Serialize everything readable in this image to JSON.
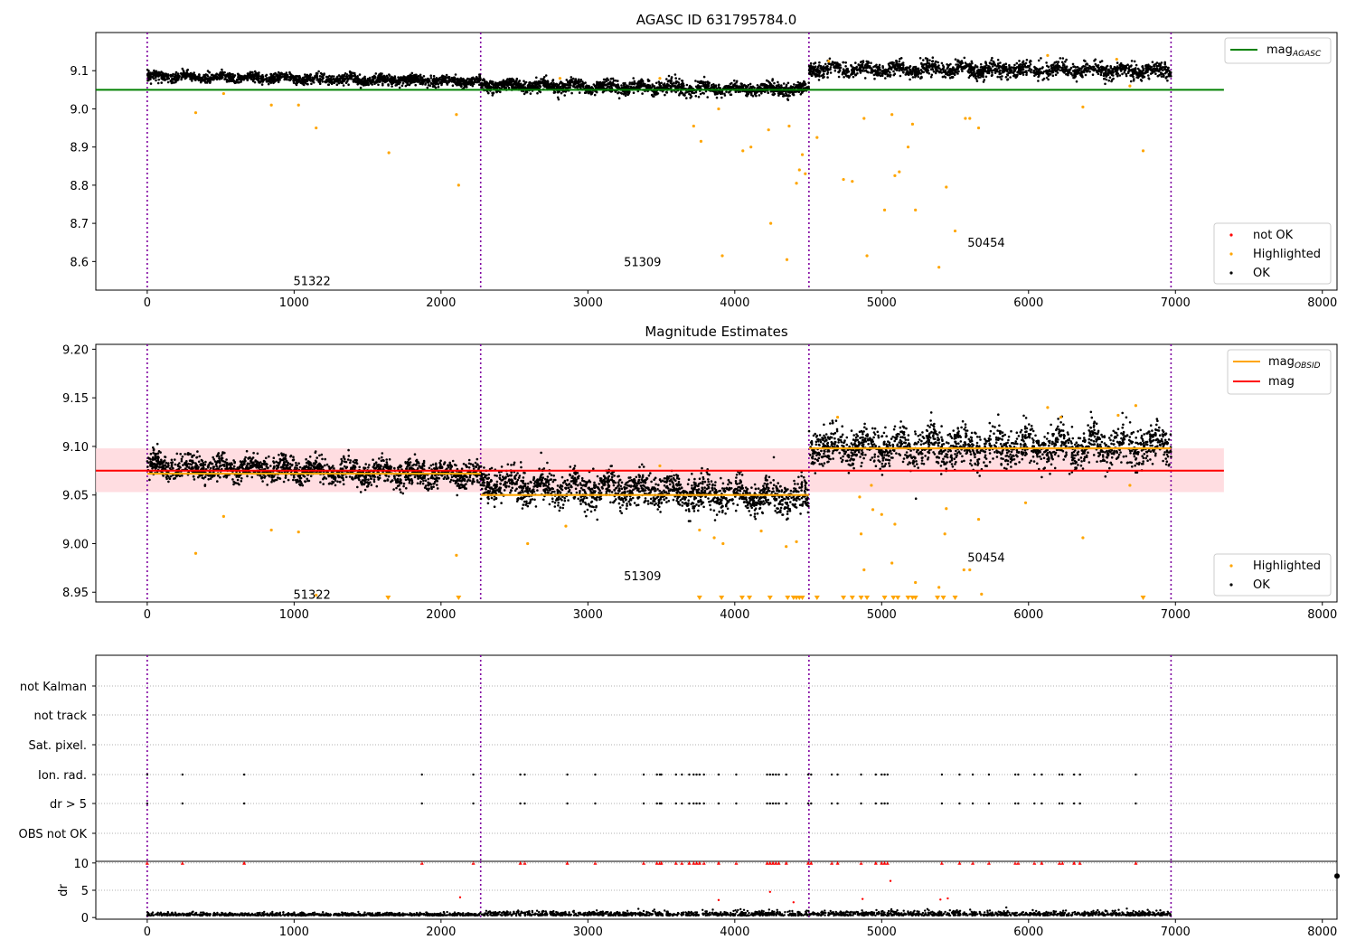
{
  "chart_data": [
    {
      "type": "scatter",
      "title": "AGASC ID 631795784.0",
      "xlim": [
        -350,
        8100
      ],
      "ylim": [
        8.525,
        9.2
      ],
      "xticks": [
        0,
        1000,
        2000,
        3000,
        4000,
        5000,
        6000,
        7000,
        8000
      ],
      "xtick_labels": [
        "0",
        "1000",
        "2000",
        "3000",
        "4000",
        "5000",
        "6000",
        "7000",
        "8000"
      ],
      "yticks": [
        8.6,
        8.7,
        8.8,
        8.9,
        9.0,
        9.1
      ],
      "ytick_labels": [
        "8.6",
        "8.7",
        "8.8",
        "8.9",
        "9.0",
        "9.1"
      ],
      "grid": false,
      "obsid_boundaries": [
        0,
        2270,
        4505,
        6970
      ],
      "obsid_labels": [
        {
          "text": "51322",
          "x": 1130,
          "y": 8.55
        },
        {
          "text": "51309",
          "x": 3380,
          "y": 8.6
        },
        {
          "text": "50454",
          "x": 5720,
          "y": 8.65
        }
      ],
      "lines": [
        {
          "name": "mag",
          "subscript": "AGASC",
          "color": "#008000",
          "x": [
            -350,
            7330
          ],
          "y": [
            9.05,
            9.05
          ]
        }
      ],
      "ok_segments": [
        {
          "x_start": 0,
          "x_end": 2270,
          "start": 9.085,
          "end": 9.072,
          "spread": 0.009
        },
        {
          "x_start": 2270,
          "x_end": 4505,
          "start": 9.062,
          "end": 9.05,
          "spread": 0.012
        },
        {
          "x_start": 4505,
          "x_end": 6970,
          "start": 9.105,
          "end": 9.1,
          "spread": 0.014
        }
      ],
      "highlighted_points": [
        [
          330,
          8.99
        ],
        [
          845,
          9.01
        ],
        [
          1030,
          9.01
        ],
        [
          1150,
          8.95
        ],
        [
          1645,
          8.885
        ],
        [
          2105,
          8.985
        ],
        [
          2120,
          8.8
        ],
        [
          3490,
          9.08
        ],
        [
          3720,
          8.955
        ],
        [
          3770,
          8.915
        ],
        [
          3890,
          9.0
        ],
        [
          3915,
          8.615
        ],
        [
          4055,
          8.89
        ],
        [
          4110,
          8.9
        ],
        [
          4230,
          8.945
        ],
        [
          4245,
          8.7
        ],
        [
          4355,
          8.605
        ],
        [
          4370,
          8.955
        ],
        [
          4420,
          8.805
        ],
        [
          4440,
          8.84
        ],
        [
          4460,
          8.88
        ],
        [
          4480,
          8.83
        ],
        [
          4560,
          8.925
        ],
        [
          4740,
          8.815
        ],
        [
          4800,
          8.81
        ],
        [
          4880,
          8.975
        ],
        [
          4900,
          8.615
        ],
        [
          5020,
          8.735
        ],
        [
          5070,
          8.985
        ],
        [
          5090,
          8.825
        ],
        [
          5120,
          8.835
        ],
        [
          5180,
          8.9
        ],
        [
          5210,
          8.96
        ],
        [
          5230,
          8.735
        ],
        [
          5390,
          8.585
        ],
        [
          5440,
          8.795
        ],
        [
          5500,
          8.68
        ],
        [
          5570,
          8.975
        ],
        [
          5600,
          8.975
        ],
        [
          5660,
          8.95
        ],
        [
          6370,
          9.005
        ],
        [
          6780,
          8.89
        ],
        [
          6690,
          9.06
        ],
        [
          6600,
          9.13
        ],
        [
          6130,
          9.14
        ],
        [
          4640,
          9.125
        ],
        [
          2810,
          9.08
        ],
        [
          520,
          9.04
        ]
      ],
      "legend": {
        "upper": [
          "mag_AGASC"
        ],
        "lower": [
          "not OK",
          "Highlighted",
          "OK"
        ]
      },
      "colors": {
        "ok": "#000000",
        "highlighted": "#ffa500",
        "not_ok": "#ff0000",
        "agasc": "#008000",
        "obsid_line": "#8000a0"
      }
    },
    {
      "type": "scatter",
      "title": "Magnitude Estimates",
      "xlim": [
        -350,
        8100
      ],
      "ylim": [
        8.94,
        9.205
      ],
      "xticks": [
        0,
        1000,
        2000,
        3000,
        4000,
        5000,
        6000,
        7000,
        8000
      ],
      "xtick_labels": [
        "0",
        "1000",
        "2000",
        "3000",
        "4000",
        "5000",
        "6000",
        "7000",
        "8000"
      ],
      "yticks": [
        8.95,
        9.0,
        9.05,
        9.1,
        9.15,
        9.2
      ],
      "ytick_labels": [
        "8.95",
        "9.00",
        "9.05",
        "9.10",
        "9.15",
        "9.20"
      ],
      "grid": false,
      "obsid_boundaries": [
        0,
        2270,
        4505,
        6970
      ],
      "obsid_labels": [
        {
          "text": "51322",
          "x": 1130,
          "y": 8.948
        },
        {
          "text": "51309",
          "x": 3380,
          "y": 8.967
        },
        {
          "text": "50454",
          "x": 5720,
          "y": 8.986
        }
      ],
      "mag": {
        "value": 9.075,
        "band": [
          9.053,
          9.098
        ],
        "x": [
          -350,
          7330
        ],
        "color": "#ff0000"
      },
      "mag_obsid": [
        {
          "x": [
            0,
            2270
          ],
          "value": 9.072
        },
        {
          "x": [
            2270,
            4505
          ],
          "value": 9.05
        },
        {
          "x": [
            4505,
            6970
          ],
          "value": 9.098
        }
      ],
      "ok_segments": [
        {
          "x_start": 0,
          "x_end": 2270,
          "start": 9.08,
          "end": 9.07,
          "spread": 0.009
        },
        {
          "x_start": 2270,
          "x_end": 4505,
          "start": 9.06,
          "end": 9.048,
          "spread": 0.012
        },
        {
          "x_start": 4505,
          "x_end": 6970,
          "start": 9.1,
          "end": 9.1,
          "spread": 0.014
        }
      ],
      "highlighted_points": [
        [
          330,
          8.99
        ],
        [
          520,
          9.028
        ],
        [
          845,
          9.014
        ],
        [
          1030,
          9.012
        ],
        [
          1150,
          8.947
        ],
        [
          2105,
          8.988
        ],
        [
          2590,
          9.0
        ],
        [
          2850,
          9.018
        ],
        [
          3490,
          9.08
        ],
        [
          3760,
          9.014
        ],
        [
          3860,
          9.006
        ],
        [
          3920,
          9.0
        ],
        [
          4180,
          9.013
        ],
        [
          4350,
          8.997
        ],
        [
          4420,
          9.002
        ],
        [
          4700,
          9.13
        ],
        [
          4850,
          9.048
        ],
        [
          4860,
          9.01
        ],
        [
          4880,
          8.973
        ],
        [
          4940,
          9.035
        ],
        [
          5000,
          9.03
        ],
        [
          5070,
          8.98
        ],
        [
          5090,
          9.02
        ],
        [
          5230,
          8.96
        ],
        [
          5390,
          8.955
        ],
        [
          5430,
          9.01
        ],
        [
          5440,
          9.036
        ],
        [
          5560,
          8.973
        ],
        [
          5600,
          8.973
        ],
        [
          5660,
          9.025
        ],
        [
          5680,
          8.948
        ],
        [
          5980,
          9.042
        ],
        [
          6370,
          9.006
        ],
        [
          6690,
          9.06
        ],
        [
          6130,
          9.14
        ],
        [
          6220,
          9.13
        ],
        [
          6610,
          9.132
        ],
        [
          6730,
          9.142
        ],
        [
          4930,
          9.06
        ]
      ],
      "below_range_x": [
        1640,
        2120,
        3760,
        3910,
        4050,
        4100,
        4240,
        4360,
        4400,
        4420,
        4440,
        4460,
        4560,
        4740,
        4800,
        4860,
        4900,
        5020,
        5080,
        5110,
        5180,
        5210,
        5230,
        5380,
        5420,
        5500,
        6780
      ],
      "legend": {
        "upper": [
          "mag_OBSID",
          "mag"
        ],
        "lower": [
          "Highlighted",
          "OK"
        ]
      },
      "colors": {
        "ok": "#000000",
        "highlighted": "#ffa500",
        "mag_obsid": "#ffa500",
        "mag": "#ff0000",
        "band": "#ffd7dc",
        "obsid_line": "#8000a0"
      }
    },
    {
      "type": "scatter",
      "title": "",
      "xlim": [
        -350,
        8100
      ],
      "categories": [
        "not Kalman",
        "not track",
        "Sat. pixel.",
        "Ion. rad.",
        "dr > 5",
        "OBS not OK"
      ],
      "flag_events_x": [
        0,
        240,
        660,
        1870,
        2220,
        2540,
        2570,
        2860,
        3050,
        3380,
        3470,
        3490,
        3500,
        3600,
        3640,
        3690,
        3720,
        3740,
        3760,
        3790,
        3890,
        4010,
        4220,
        4240,
        4260,
        4280,
        4300,
        4350,
        4500,
        4520,
        4660,
        4700,
        4860,
        4960,
        5000,
        5020,
        5040,
        5410,
        5530,
        5620,
        5730,
        5910,
        5930,
        6040,
        6090,
        6210,
        6230,
        6310,
        6350,
        6730
      ],
      "flag_rows": [
        "Ion. rad.",
        "dr > 5"
      ],
      "obsid_boundaries": [
        0,
        2270,
        4505,
        6970
      ],
      "colors": {
        "flag": "#000000",
        "obsid_line": "#8000a0"
      }
    },
    {
      "type": "scatter",
      "title": "",
      "ylabel": "dr",
      "xlim": [
        -350,
        8100
      ],
      "ylim": [
        -0.3,
        10.3
      ],
      "yticks": [
        0,
        5,
        10
      ],
      "ytick_labels": [
        "0",
        "5",
        "10"
      ],
      "xticks": [
        0,
        1000,
        2000,
        3000,
        4000,
        5000,
        6000,
        7000,
        8000
      ],
      "xtick_labels": [
        "0",
        "1000",
        "2000",
        "3000",
        "4000",
        "5000",
        "6000",
        "7000",
        "8000"
      ],
      "baseline_dr": {
        "mean": 0.55,
        "spread": 0.3,
        "x_start": 0,
        "x_end": 6970
      },
      "clipped_value": 10,
      "clipped_x": [
        0,
        240,
        660,
        1870,
        2220,
        2540,
        2570,
        2860,
        3050,
        3380,
        3470,
        3490,
        3500,
        3600,
        3640,
        3690,
        3720,
        3740,
        3760,
        3790,
        3890,
        4010,
        4220,
        4240,
        4260,
        4280,
        4300,
        4350,
        4500,
        4520,
        4660,
        4700,
        4860,
        4960,
        5000,
        5020,
        5040,
        5410,
        5530,
        5620,
        5730,
        5910,
        5930,
        6040,
        6090,
        6210,
        6230,
        6310,
        6350,
        6730
      ],
      "red_points": [
        [
          2130,
          3.7
        ],
        [
          3890,
          3.2
        ],
        [
          4240,
          4.7
        ],
        [
          4870,
          3.4
        ],
        [
          5060,
          6.7
        ],
        [
          5400,
          3.3
        ],
        [
          5450,
          3.5
        ],
        [
          4400,
          2.8
        ]
      ],
      "obsid_boundaries": [
        0,
        2270,
        4505,
        6970
      ],
      "colors": {
        "ok": "#000000",
        "clipped": "#ff0000",
        "obsid_line": "#8000a0"
      }
    }
  ]
}
